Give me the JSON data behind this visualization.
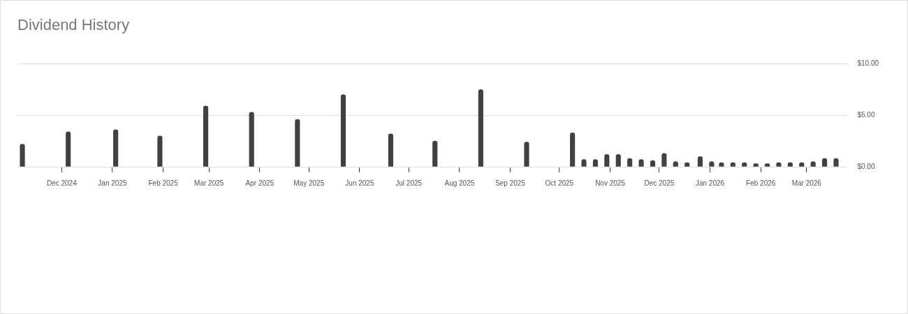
{
  "chart_data": {
    "type": "bar",
    "title": "Dividend History",
    "x": [
      "2024-11-07",
      "2024-12-05",
      "2025-01-03",
      "2025-01-30",
      "2025-02-27",
      "2025-03-27",
      "2025-04-24",
      "2025-05-22",
      "2025-06-20",
      "2025-07-17",
      "2025-08-14",
      "2025-09-11",
      "2025-10-09",
      "2025-10-16",
      "2025-10-23",
      "2025-10-30",
      "2025-11-06",
      "2025-11-13",
      "2025-11-20",
      "2025-11-27",
      "2025-12-04",
      "2025-12-11",
      "2025-12-18",
      "2025-12-26",
      "2026-01-02",
      "2026-01-08",
      "2026-01-15",
      "2026-01-22",
      "2026-01-29",
      "2026-02-05",
      "2026-02-12",
      "2026-02-19",
      "2026-02-26",
      "2026-03-05",
      "2026-03-12",
      "2026-03-19"
    ],
    "values": [
      2.2,
      3.4,
      3.6,
      3.0,
      5.9,
      5.3,
      4.6,
      7.0,
      3.2,
      2.5,
      7.5,
      2.4,
      3.3,
      0.7,
      0.7,
      1.2,
      1.2,
      0.8,
      0.7,
      0.6,
      1.3,
      0.5,
      0.4,
      1.0,
      0.5,
      0.4,
      0.4,
      0.4,
      0.3,
      0.3,
      0.4,
      0.4,
      0.4,
      0.5,
      0.8,
      0.8
    ],
    "color": "#414043",
    "xlim": [
      "2024-11-04",
      "2026-03-26"
    ],
    "xticks": [
      {
        "value": "2024-12",
        "label": "Dec 2024"
      },
      {
        "value": "2025-01",
        "label": "Jan 2025"
      },
      {
        "value": "2025-02",
        "label": "Feb 2025"
      },
      {
        "value": "2025-03",
        "label": "Mar 2025"
      },
      {
        "value": "2025-04",
        "label": "Apr 2025"
      },
      {
        "value": "2025-05",
        "label": "May 2025"
      },
      {
        "value": "2025-06",
        "label": "Jun 2025"
      },
      {
        "value": "2025-07",
        "label": "Jul 2025"
      },
      {
        "value": "2025-08",
        "label": "Aug 2025"
      },
      {
        "value": "2025-09",
        "label": "Sep 2025"
      },
      {
        "value": "2025-10",
        "label": "Oct 2025"
      },
      {
        "value": "2025-11",
        "label": "Nov 2025"
      },
      {
        "value": "2025-12",
        "label": "Dec 2025"
      },
      {
        "value": "2026-01",
        "label": "Jan 2026"
      },
      {
        "value": "2026-02",
        "label": "Feb 2026"
      },
      {
        "value": "2026-03",
        "label": "Mar 2026"
      }
    ],
    "ylim": [
      0,
      10
    ],
    "yticks": [
      {
        "value": 0,
        "label": "$0.00"
      },
      {
        "value": 5,
        "label": "$5.00"
      },
      {
        "value": 10,
        "label": "$10.00"
      }
    ],
    "grid": "y"
  }
}
